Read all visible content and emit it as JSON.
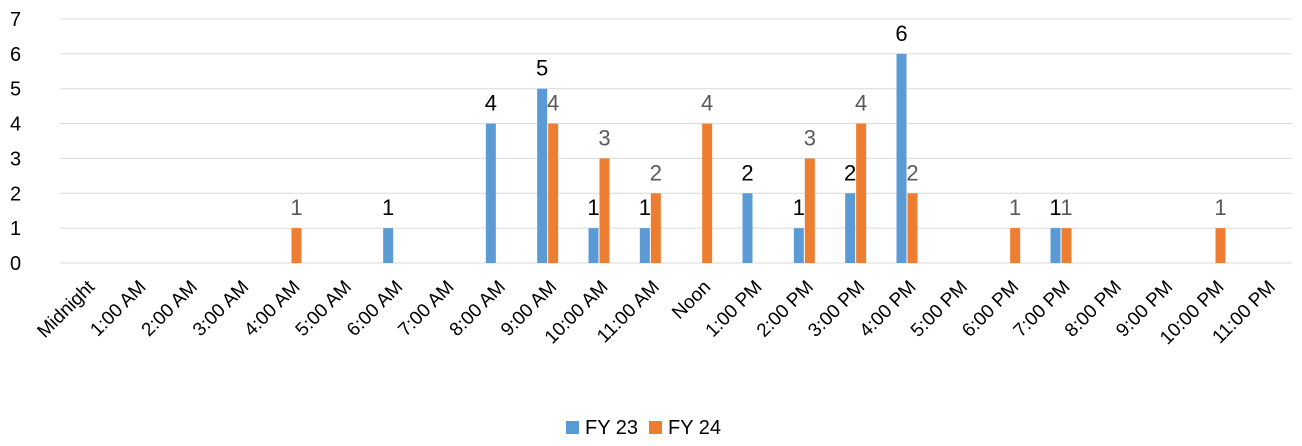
{
  "chart_data": {
    "type": "bar",
    "categories": [
      "Midnight",
      "1:00 AM",
      "2:00 AM",
      "3:00 AM",
      "4:00 AM",
      "5:00 AM",
      "6:00 AM",
      "7:00 AM",
      "8:00 AM",
      "9:00 AM",
      "10:00 AM",
      "11:00 AM",
      "Noon",
      "1:00 PM",
      "2:00 PM",
      "3:00 PM",
      "4:00 PM",
      "5:00 PM",
      "6:00 PM",
      "7:00 PM",
      "8:00 PM",
      "9:00 PM",
      "10:00 PM",
      "11:00 PM"
    ],
    "series": [
      {
        "name": "FY 23",
        "color": "#5B9BD5",
        "label_color": "#000000",
        "values": [
          null,
          null,
          null,
          null,
          null,
          null,
          1,
          null,
          4,
          5,
          1,
          1,
          null,
          2,
          1,
          2,
          6,
          null,
          null,
          1,
          null,
          null,
          null,
          null
        ]
      },
      {
        "name": "FY 24",
        "color": "#ED7D31",
        "label_color": "#595959",
        "values": [
          null,
          null,
          null,
          null,
          1,
          null,
          null,
          null,
          null,
          4,
          3,
          2,
          4,
          null,
          3,
          4,
          2,
          null,
          1,
          1,
          null,
          null,
          1,
          null
        ]
      }
    ],
    "y_ticks": [
      0,
      1,
      2,
      3,
      4,
      5,
      6,
      7
    ],
    "ylim": [
      0,
      7
    ],
    "title": "",
    "xlabel": "",
    "ylabel": "",
    "grid": true,
    "legend_position": "bottom",
    "gridline_color": "#D9D9D9"
  }
}
